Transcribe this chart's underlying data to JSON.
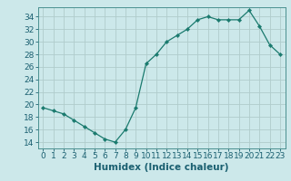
{
  "x": [
    0,
    1,
    2,
    3,
    4,
    5,
    6,
    7,
    8,
    9,
    10,
    11,
    12,
    13,
    14,
    15,
    16,
    17,
    18,
    19,
    20,
    21,
    22,
    23
  ],
  "y": [
    19.5,
    19.0,
    18.5,
    17.5,
    16.5,
    15.5,
    14.5,
    14.0,
    16.0,
    19.5,
    26.5,
    28.0,
    30.0,
    31.0,
    32.0,
    33.5,
    34.0,
    33.5,
    33.5,
    33.5,
    35.0,
    32.5,
    29.5,
    28.0
  ],
  "line_color": "#1a7a6e",
  "marker": "D",
  "marker_size": 2.2,
  "bg_color": "#cce8ea",
  "grid_color": "#b0cccc",
  "spine_color": "#4a9090",
  "xlabel": "Humidex (Indice chaleur)",
  "xlim": [
    -0.5,
    23.5
  ],
  "ylim": [
    13.0,
    35.5
  ],
  "yticks": [
    14,
    16,
    18,
    20,
    22,
    24,
    26,
    28,
    30,
    32,
    34
  ],
  "xticks": [
    0,
    1,
    2,
    3,
    4,
    5,
    6,
    7,
    8,
    9,
    10,
    11,
    12,
    13,
    14,
    15,
    16,
    17,
    18,
    19,
    20,
    21,
    22,
    23
  ],
  "font_color": "#1a5f70",
  "tick_fontsize": 6.5,
  "label_fontsize": 7.5
}
